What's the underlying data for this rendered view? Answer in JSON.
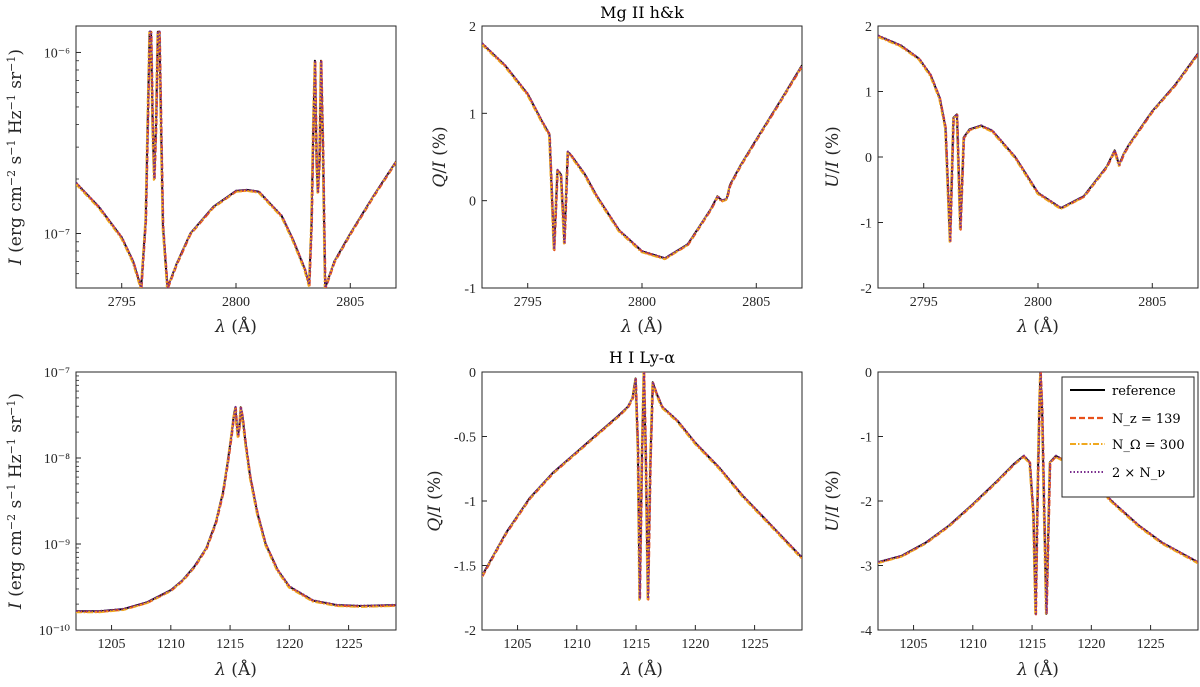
{
  "figure_titles": [
    "Mg II h&k",
    "H I Ly-α"
  ],
  "legend_labels": {
    "reference": "reference",
    "nz": "N_z = 139",
    "nomega": "N_Ω = 300",
    "nnu": "2 × N_ν"
  },
  "colors": {
    "reference": "#000000",
    "nz": "#e8501a",
    "nomega": "#f0a81e",
    "nnu": "#7a2e8e"
  },
  "chart_data": [
    {
      "type": "line",
      "panel": "mg-intensity",
      "title": "",
      "xlabel": "λ (Å)",
      "ylabel": "I (erg cm⁻² s⁻¹ Hz⁻¹ sr⁻¹)",
      "yscale": "log",
      "xlim": [
        2793,
        2807
      ],
      "ylim": [
        5e-08,
        1.4e-06
      ],
      "xticks": [
        2795,
        2800,
        2805
      ],
      "xtick_labels": [
        "2795",
        "2800",
        "2805"
      ],
      "yticks": [
        1e-07,
        1e-06
      ],
      "ytick_labels": [
        "10⁻⁷",
        "10⁻⁶"
      ],
      "x": [
        2793.0,
        2794.0,
        2795.0,
        2795.5,
        2795.85,
        2796.05,
        2796.15,
        2796.22,
        2796.28,
        2796.35,
        2796.42,
        2796.5,
        2796.58,
        2796.65,
        2796.72,
        2796.8,
        2797.0,
        2797.4,
        2798.0,
        2799.0,
        2800.0,
        2800.5,
        2801.0,
        2802.0,
        2802.5,
        2803.0,
        2803.2,
        2803.3,
        2803.38,
        2803.45,
        2803.52,
        2803.58,
        2803.65,
        2803.72,
        2803.8,
        2803.9,
        2804.3,
        2805.0,
        2806.0,
        2807.0
      ],
      "series": [
        {
          "name": "reference",
          "values": [
            1.9e-07,
            1.4e-07,
            9.5e-08,
            7e-08,
            5e-08,
            1.2e-07,
            5e-07,
            1.3e-06,
            1.3e-06,
            4e-07,
            2e-07,
            4e-07,
            1.3e-06,
            1.3e-06,
            4e-07,
            1.1e-07,
            5e-08,
            6.8e-08,
            1e-07,
            1.4e-07,
            1.72e-07,
            1.74e-07,
            1.7e-07,
            1.25e-07,
            9.2e-08,
            6.4e-08,
            5.2e-08,
            1.1e-07,
            4e-07,
            9e-07,
            2.5e-07,
            1.7e-07,
            2.5e-07,
            9e-07,
            3e-07,
            5e-08,
            7e-08,
            1e-07,
            1.6e-07,
            2.5e-07
          ]
        }
      ]
    },
    {
      "type": "line",
      "panel": "mg-q",
      "title": "Mg II h&k",
      "xlabel": "λ (Å)",
      "ylabel": "Q/I (%)",
      "xlim": [
        2793,
        2807
      ],
      "ylim": [
        -1,
        2
      ],
      "xticks": [
        2795,
        2800,
        2805
      ],
      "xtick_labels": [
        "2795",
        "2800",
        "2805"
      ],
      "yticks": [
        -1,
        0,
        1,
        2
      ],
      "ytick_labels": [
        "-1",
        "0",
        "1",
        "2"
      ],
      "x": [
        2793.0,
        2794.0,
        2795.0,
        2795.6,
        2795.95,
        2796.15,
        2796.3,
        2796.45,
        2796.6,
        2796.75,
        2796.9,
        2797.5,
        2798.0,
        2799.0,
        2800.0,
        2801.0,
        2802.0,
        2802.5,
        2803.0,
        2803.3,
        2803.5,
        2803.7,
        2803.85,
        2804.3,
        2805.0,
        2806.0,
        2807.0
      ],
      "series": [
        {
          "name": "reference",
          "values": [
            1.8,
            1.55,
            1.22,
            0.92,
            0.76,
            -0.56,
            0.35,
            0.3,
            -0.48,
            0.56,
            0.52,
            0.3,
            0.06,
            -0.34,
            -0.58,
            -0.66,
            -0.5,
            -0.3,
            -0.1,
            0.05,
            0.0,
            0.02,
            0.18,
            0.4,
            0.7,
            1.12,
            1.55
          ]
        }
      ]
    },
    {
      "type": "line",
      "panel": "mg-u",
      "title": "",
      "xlabel": "λ (Å)",
      "ylabel": "U/I (%)",
      "xlim": [
        2793,
        2807
      ],
      "ylim": [
        -2,
        2
      ],
      "xticks": [
        2795,
        2800,
        2805
      ],
      "xtick_labels": [
        "2795",
        "2800",
        "2805"
      ],
      "yticks": [
        -2,
        -1,
        0,
        1,
        2
      ],
      "ytick_labels": [
        "-2",
        "-1",
        "0",
        "1",
        "2"
      ],
      "x": [
        2793.0,
        2794.0,
        2794.8,
        2795.3,
        2795.7,
        2795.95,
        2796.15,
        2796.3,
        2796.45,
        2796.6,
        2796.75,
        2797.0,
        2797.5,
        2798.0,
        2799.0,
        2800.0,
        2801.0,
        2802.0,
        2803.0,
        2803.35,
        2803.55,
        2803.75,
        2804.0,
        2805.0,
        2806.0,
        2807.0
      ],
      "series": [
        {
          "name": "reference",
          "values": [
            1.85,
            1.7,
            1.5,
            1.25,
            0.9,
            0.45,
            -1.28,
            0.6,
            0.65,
            -1.1,
            0.3,
            0.42,
            0.48,
            0.4,
            0.0,
            -0.55,
            -0.78,
            -0.6,
            -0.15,
            0.1,
            -0.12,
            0.05,
            0.2,
            0.7,
            1.1,
            1.58
          ]
        }
      ]
    },
    {
      "type": "line",
      "panel": "ly-intensity",
      "title": "",
      "xlabel": "λ (Å)",
      "ylabel": "I (erg cm⁻² s⁻¹ Hz⁻¹ sr⁻¹)",
      "yscale": "log",
      "xlim": [
        1202,
        1229
      ],
      "ylim": [
        1e-10,
        1e-07
      ],
      "xticks": [
        1205,
        1210,
        1215,
        1220,
        1225
      ],
      "xtick_labels": [
        "1205",
        "1210",
        "1215",
        "1220",
        "1225"
      ],
      "yticks": [
        1e-10,
        1e-09,
        1e-08,
        1e-07
      ],
      "ytick_labels": [
        "10⁻¹⁰",
        "10⁻⁹",
        "10⁻⁸",
        "10⁻⁷"
      ],
      "x": [
        1202.0,
        1204.0,
        1206.0,
        1208.0,
        1210.0,
        1211.0,
        1212.0,
        1213.0,
        1213.8,
        1214.4,
        1214.8,
        1215.1,
        1215.3,
        1215.45,
        1215.55,
        1215.67,
        1215.8,
        1215.9,
        1216.05,
        1216.3,
        1216.7,
        1217.3,
        1218.0,
        1219.0,
        1220.0,
        1222.0,
        1224.0,
        1226.0,
        1229.0
      ],
      "series": [
        {
          "name": "reference",
          "values": [
            1.65e-10,
            1.65e-10,
            1.75e-10,
            2.1e-10,
            2.9e-10,
            3.8e-10,
            5.5e-10,
            9e-10,
            1.8e-09,
            4e-09,
            9e-09,
            1.8e-08,
            3e-08,
            3.9e-08,
            2.5e-08,
            1.8e-08,
            2.5e-08,
            3.9e-08,
            3e-08,
            1.5e-08,
            6e-09,
            2.3e-09,
            1e-09,
            5e-10,
            3.2e-10,
            2.2e-10,
            1.95e-10,
            1.9e-10,
            1.95e-10
          ]
        }
      ]
    },
    {
      "type": "line",
      "panel": "ly-q",
      "title": "H I Ly-α",
      "xlabel": "λ (Å)",
      "ylabel": "Q/I (%)",
      "xlim": [
        1202,
        1229
      ],
      "ylim": [
        -2,
        0
      ],
      "xticks": [
        1205,
        1210,
        1215,
        1220,
        1225
      ],
      "xtick_labels": [
        "1205",
        "1210",
        "1215",
        "1220",
        "1225"
      ],
      "yticks": [
        -2,
        -1.5,
        -1,
        -0.5,
        0
      ],
      "ytick_labels": [
        "-2",
        "-1.5",
        "-1",
        "-0.5",
        "0"
      ],
      "x": [
        1202.0,
        1204.0,
        1206.0,
        1208.0,
        1210.0,
        1212.0,
        1213.5,
        1214.3,
        1214.7,
        1214.95,
        1215.15,
        1215.3,
        1215.5,
        1215.65,
        1215.8,
        1216.0,
        1216.2,
        1216.4,
        1216.7,
        1217.2,
        1218.5,
        1220.0,
        1222.0,
        1224.0,
        1226.0,
        1229.0
      ],
      "series": [
        {
          "name": "reference",
          "values": [
            -1.58,
            -1.25,
            -0.98,
            -0.78,
            -0.62,
            -0.46,
            -0.34,
            -0.27,
            -0.2,
            -0.05,
            -0.6,
            -1.76,
            -0.6,
            0.0,
            -0.6,
            -1.76,
            -0.7,
            -0.08,
            -0.16,
            -0.27,
            -0.38,
            -0.55,
            -0.74,
            -0.96,
            -1.15,
            -1.44
          ]
        }
      ]
    },
    {
      "type": "line",
      "panel": "ly-u",
      "title": "",
      "xlabel": "λ (Å)",
      "ylabel": "U/I (%)",
      "xlim": [
        1202,
        1229
      ],
      "ylim": [
        -4,
        0
      ],
      "xticks": [
        1205,
        1210,
        1215,
        1220,
        1225
      ],
      "xtick_labels": [
        "1205",
        "1210",
        "1215",
        "1220",
        "1225"
      ],
      "yticks": [
        -4,
        -3,
        -2,
        -1,
        0
      ],
      "ytick_labels": [
        "-4",
        "-3",
        "-2",
        "-1",
        "0"
      ],
      "x": [
        1202.0,
        1204.0,
        1206.0,
        1208.0,
        1210.0,
        1212.0,
        1213.5,
        1214.3,
        1214.8,
        1215.1,
        1215.3,
        1215.45,
        1215.6,
        1215.7,
        1215.85,
        1216.0,
        1216.2,
        1216.5,
        1217.0,
        1218.5,
        1220.0,
        1222.0,
        1224.0,
        1226.0,
        1229.0
      ],
      "series": [
        {
          "name": "reference",
          "values": [
            -2.95,
            -2.85,
            -2.65,
            -2.38,
            -2.05,
            -1.7,
            -1.42,
            -1.3,
            -1.4,
            -2.2,
            -3.75,
            -2.0,
            -0.6,
            0.0,
            -0.6,
            -2.0,
            -3.75,
            -1.4,
            -1.3,
            -1.45,
            -1.7,
            -2.05,
            -2.38,
            -2.65,
            -2.95
          ]
        }
      ]
    }
  ]
}
